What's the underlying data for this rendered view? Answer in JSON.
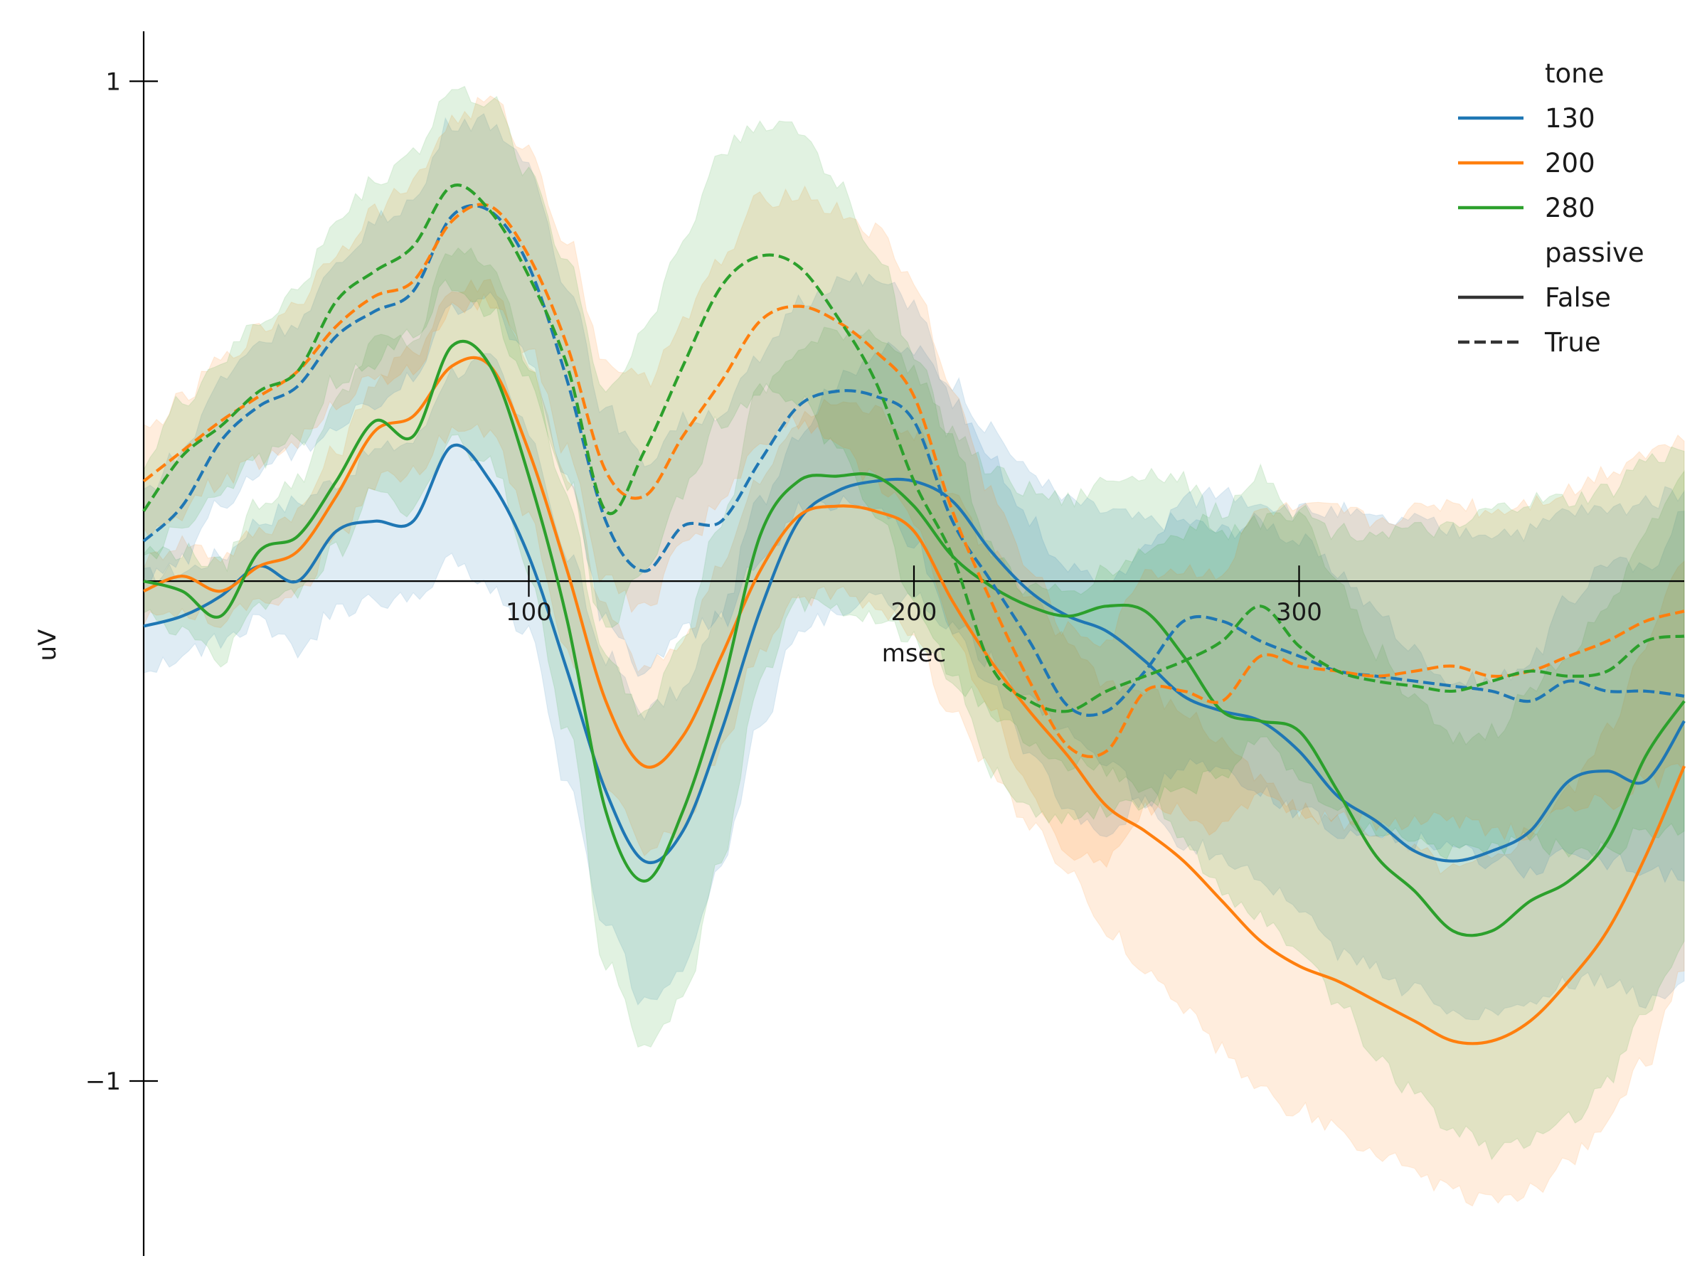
{
  "chart_data": {
    "type": "line",
    "xlabel": "msec",
    "ylabel": "uV",
    "xlim": [
      0,
      400
    ],
    "ylim": [
      -1.35,
      1.1
    ],
    "x_ticks": [
      {
        "value": 100,
        "label": "100"
      },
      {
        "value": 200,
        "label": "200"
      },
      {
        "value": 300,
        "label": "300"
      }
    ],
    "y_ticks": [
      {
        "value": 1,
        "label": "1"
      },
      {
        "value": -1,
        "label": "−1"
      }
    ],
    "grid": false,
    "legend_placement": "top-right",
    "legend": {
      "groups": [
        {
          "title": "tone",
          "entries": [
            {
              "label": "130",
              "color": "#1f77b4",
              "dash": "solid"
            },
            {
              "label": "200",
              "color": "#ff7f0e",
              "dash": "solid"
            },
            {
              "label": "280",
              "color": "#2ca02c",
              "dash": "solid"
            }
          ]
        },
        {
          "title": "passive",
          "entries": [
            {
              "label": "False",
              "color": "#333333",
              "dash": "solid"
            },
            {
              "label": "True",
              "color": "#333333",
              "dash": "dashed"
            }
          ]
        }
      ]
    },
    "x": [
      0,
      10,
      20,
      30,
      40,
      50,
      60,
      70,
      80,
      90,
      100,
      110,
      120,
      130,
      140,
      150,
      160,
      170,
      180,
      190,
      200,
      210,
      220,
      230,
      240,
      250,
      260,
      270,
      280,
      290,
      300,
      310,
      320,
      330,
      340,
      350,
      360,
      370,
      380,
      390,
      400
    ],
    "series": [
      {
        "tone": "130",
        "passive": "False",
        "color": "#1f77b4",
        "dash": "solid",
        "y": [
          -0.09,
          -0.07,
          -0.03,
          0.03,
          0.0,
          0.1,
          0.12,
          0.12,
          0.27,
          0.2,
          0.05,
          -0.18,
          -0.42,
          -0.56,
          -0.5,
          -0.3,
          -0.06,
          0.12,
          0.18,
          0.2,
          0.2,
          0.16,
          0.06,
          -0.02,
          -0.07,
          -0.1,
          -0.16,
          -0.23,
          -0.26,
          -0.28,
          -0.34,
          -0.43,
          -0.48,
          -0.54,
          -0.56,
          -0.54,
          -0.5,
          -0.4,
          -0.38,
          -0.4,
          -0.28
        ],
        "lower": [
          -0.17,
          -0.15,
          -0.12,
          -0.08,
          -0.14,
          -0.06,
          -0.04,
          -0.04,
          0.05,
          -0.02,
          -0.1,
          -0.4,
          -0.68,
          -0.84,
          -0.78,
          -0.56,
          -0.3,
          -0.1,
          -0.06,
          -0.04,
          -0.04,
          -0.08,
          -0.16,
          -0.24,
          -0.3,
          -0.36,
          -0.44,
          -0.52,
          -0.55,
          -0.6,
          -0.66,
          -0.74,
          -0.78,
          -0.82,
          -0.86,
          -0.86,
          -0.84,
          -0.8,
          -0.8,
          -0.84,
          -0.8
        ],
        "upper": [
          0.01,
          0.02,
          0.05,
          0.12,
          0.16,
          0.2,
          0.26,
          0.28,
          0.42,
          0.44,
          0.3,
          0.05,
          -0.15,
          -0.26,
          -0.22,
          -0.06,
          0.16,
          0.3,
          0.4,
          0.46,
          0.46,
          0.4,
          0.3,
          0.22,
          0.16,
          0.14,
          0.12,
          0.12,
          0.1,
          0.12,
          0.08,
          0.02,
          -0.06,
          -0.14,
          -0.2,
          -0.2,
          -0.16,
          -0.04,
          0.04,
          0.02,
          0.14
        ]
      },
      {
        "tone": "200",
        "passive": "False",
        "color": "#ff7f0e",
        "dash": "solid",
        "y": [
          -0.02,
          0.01,
          -0.02,
          0.03,
          0.06,
          0.17,
          0.3,
          0.33,
          0.43,
          0.43,
          0.26,
          0.02,
          -0.24,
          -0.37,
          -0.31,
          -0.15,
          0.02,
          0.13,
          0.15,
          0.14,
          0.1,
          -0.04,
          -0.16,
          -0.26,
          -0.35,
          -0.45,
          -0.5,
          -0.56,
          -0.64,
          -0.72,
          -0.77,
          -0.8,
          -0.84,
          -0.88,
          -0.92,
          -0.92,
          -0.88,
          -0.8,
          -0.7,
          -0.55,
          -0.37
        ],
        "lower": [
          -0.08,
          -0.06,
          -0.08,
          -0.04,
          -0.02,
          0.08,
          0.2,
          0.22,
          0.3,
          0.3,
          0.12,
          -0.14,
          -0.4,
          -0.54,
          -0.5,
          -0.34,
          -0.14,
          -0.04,
          -0.02,
          -0.04,
          -0.12,
          -0.26,
          -0.38,
          -0.48,
          -0.58,
          -0.7,
          -0.78,
          -0.86,
          -0.94,
          -1.02,
          -1.06,
          -1.1,
          -1.14,
          -1.18,
          -1.22,
          -1.24,
          -1.22,
          -1.16,
          -1.08,
          -0.96,
          -0.78
        ],
        "upper": [
          0.04,
          0.08,
          0.05,
          0.1,
          0.14,
          0.26,
          0.4,
          0.46,
          0.58,
          0.6,
          0.44,
          0.2,
          -0.06,
          -0.18,
          -0.12,
          0.04,
          0.2,
          0.32,
          0.36,
          0.34,
          0.3,
          0.18,
          0.06,
          -0.04,
          -0.12,
          -0.2,
          -0.22,
          -0.26,
          -0.32,
          -0.4,
          -0.46,
          -0.48,
          -0.5,
          -0.54,
          -0.58,
          -0.56,
          -0.5,
          -0.42,
          -0.3,
          -0.12,
          0.04
        ]
      },
      {
        "tone": "280",
        "passive": "False",
        "color": "#2ca02c",
        "dash": "solid",
        "y": [
          0.0,
          -0.02,
          -0.07,
          0.06,
          0.09,
          0.2,
          0.32,
          0.29,
          0.47,
          0.43,
          0.21,
          -0.08,
          -0.46,
          -0.6,
          -0.46,
          -0.22,
          0.09,
          0.2,
          0.21,
          0.21,
          0.15,
          0.05,
          -0.01,
          -0.05,
          -0.07,
          -0.05,
          -0.06,
          -0.15,
          -0.26,
          -0.28,
          -0.3,
          -0.42,
          -0.55,
          -0.62,
          -0.7,
          -0.7,
          -0.64,
          -0.6,
          -0.52,
          -0.35,
          -0.24
        ],
        "lower": [
          -0.06,
          -0.1,
          -0.16,
          -0.04,
          -0.02,
          0.06,
          0.18,
          0.14,
          0.28,
          0.24,
          0.02,
          -0.3,
          -0.76,
          -0.94,
          -0.84,
          -0.56,
          -0.2,
          -0.04,
          -0.06,
          -0.08,
          -0.12,
          -0.2,
          -0.26,
          -0.32,
          -0.36,
          -0.38,
          -0.42,
          -0.52,
          -0.62,
          -0.68,
          -0.74,
          -0.84,
          -0.96,
          -1.02,
          -1.1,
          -1.14,
          -1.12,
          -1.08,
          -1.0,
          -0.86,
          -0.72
        ],
        "upper": [
          0.06,
          0.06,
          0.03,
          0.16,
          0.2,
          0.36,
          0.48,
          0.48,
          0.66,
          0.64,
          0.44,
          0.16,
          -0.16,
          -0.26,
          -0.1,
          0.12,
          0.38,
          0.46,
          0.5,
          0.5,
          0.42,
          0.3,
          0.22,
          0.18,
          0.16,
          0.2,
          0.22,
          0.2,
          0.1,
          0.12,
          0.12,
          0.0,
          -0.14,
          -0.24,
          -0.32,
          -0.3,
          -0.22,
          -0.14,
          -0.06,
          0.1,
          0.22
        ]
      },
      {
        "tone": "130",
        "passive": "True",
        "color": "#1f77b4",
        "dash": "dashed",
        "y": [
          0.08,
          0.15,
          0.28,
          0.35,
          0.39,
          0.49,
          0.54,
          0.58,
          0.73,
          0.74,
          0.63,
          0.4,
          0.12,
          0.02,
          0.11,
          0.12,
          0.24,
          0.35,
          0.38,
          0.37,
          0.32,
          0.12,
          0.0,
          -0.12,
          -0.25,
          -0.26,
          -0.18,
          -0.08,
          -0.08,
          -0.12,
          -0.15,
          -0.18,
          -0.19,
          -0.2,
          -0.21,
          -0.22,
          -0.24,
          -0.2,
          -0.22,
          -0.22,
          -0.23
        ],
        "lower": [
          0.0,
          0.04,
          0.16,
          0.22,
          0.26,
          0.32,
          0.36,
          0.4,
          0.54,
          0.56,
          0.44,
          0.2,
          -0.08,
          -0.18,
          -0.1,
          -0.08,
          0.04,
          0.14,
          0.16,
          0.14,
          0.08,
          -0.1,
          -0.22,
          -0.34,
          -0.46,
          -0.5,
          -0.44,
          -0.36,
          -0.38,
          -0.42,
          -0.46,
          -0.5,
          -0.52,
          -0.52,
          -0.54,
          -0.56,
          -0.58,
          -0.54,
          -0.56,
          -0.58,
          -0.6
        ],
        "upper": [
          0.18,
          0.26,
          0.4,
          0.48,
          0.52,
          0.62,
          0.72,
          0.76,
          0.92,
          0.92,
          0.82,
          0.6,
          0.34,
          0.24,
          0.32,
          0.34,
          0.44,
          0.56,
          0.6,
          0.6,
          0.56,
          0.36,
          0.24,
          0.12,
          0.02,
          0.0,
          0.06,
          0.16,
          0.18,
          0.16,
          0.14,
          0.14,
          0.12,
          0.12,
          0.1,
          0.1,
          0.1,
          0.14,
          0.14,
          0.16,
          0.18
        ]
      },
      {
        "tone": "200",
        "passive": "True",
        "color": "#ff7f0e",
        "dash": "dashed",
        "y": [
          0.2,
          0.26,
          0.32,
          0.37,
          0.42,
          0.51,
          0.57,
          0.6,
          0.72,
          0.75,
          0.65,
          0.47,
          0.22,
          0.17,
          0.29,
          0.4,
          0.52,
          0.55,
          0.52,
          0.46,
          0.37,
          0.14,
          -0.04,
          -0.2,
          -0.33,
          -0.34,
          -0.22,
          -0.22,
          -0.24,
          -0.15,
          -0.17,
          -0.18,
          -0.19,
          -0.18,
          -0.17,
          -0.19,
          -0.18,
          -0.15,
          -0.12,
          -0.08,
          -0.06
        ],
        "lower": [
          0.1,
          0.14,
          0.2,
          0.24,
          0.28,
          0.36,
          0.4,
          0.42,
          0.54,
          0.56,
          0.46,
          0.26,
          0.0,
          -0.06,
          0.06,
          0.16,
          0.28,
          0.32,
          0.28,
          0.2,
          0.12,
          -0.1,
          -0.26,
          -0.42,
          -0.54,
          -0.56,
          -0.46,
          -0.46,
          -0.5,
          -0.42,
          -0.46,
          -0.48,
          -0.48,
          -0.48,
          -0.48,
          -0.5,
          -0.5,
          -0.46,
          -0.44,
          -0.4,
          -0.38
        ],
        "upper": [
          0.3,
          0.36,
          0.44,
          0.5,
          0.56,
          0.66,
          0.74,
          0.8,
          0.92,
          0.96,
          0.86,
          0.68,
          0.44,
          0.4,
          0.52,
          0.64,
          0.76,
          0.78,
          0.74,
          0.7,
          0.6,
          0.38,
          0.18,
          0.02,
          -0.1,
          -0.12,
          0.02,
          0.02,
          0.02,
          0.14,
          0.14,
          0.14,
          0.12,
          0.14,
          0.16,
          0.14,
          0.16,
          0.18,
          0.22,
          0.26,
          0.28
        ]
      },
      {
        "tone": "280",
        "passive": "True",
        "color": "#2ca02c",
        "dash": "dashed",
        "y": [
          0.14,
          0.25,
          0.31,
          0.38,
          0.42,
          0.56,
          0.62,
          0.67,
          0.79,
          0.74,
          0.61,
          0.43,
          0.14,
          0.26,
          0.43,
          0.59,
          0.65,
          0.63,
          0.53,
          0.4,
          0.2,
          0.05,
          -0.17,
          -0.24,
          -0.26,
          -0.22,
          -0.19,
          -0.16,
          -0.12,
          -0.05,
          -0.13,
          -0.18,
          -0.2,
          -0.21,
          -0.22,
          -0.2,
          -0.18,
          -0.19,
          -0.18,
          -0.12,
          -0.11
        ],
        "lower": [
          0.04,
          0.12,
          0.18,
          0.24,
          0.28,
          0.4,
          0.44,
          0.5,
          0.6,
          0.54,
          0.4,
          0.2,
          -0.1,
          0.02,
          0.18,
          0.32,
          0.38,
          0.36,
          0.26,
          0.14,
          -0.04,
          -0.18,
          -0.38,
          -0.46,
          -0.48,
          -0.46,
          -0.44,
          -0.42,
          -0.38,
          -0.32,
          -0.4,
          -0.46,
          -0.5,
          -0.52,
          -0.54,
          -0.54,
          -0.52,
          -0.54,
          -0.54,
          -0.5,
          -0.5
        ],
        "upper": [
          0.24,
          0.36,
          0.44,
          0.52,
          0.58,
          0.72,
          0.8,
          0.86,
          0.98,
          0.96,
          0.82,
          0.64,
          0.38,
          0.5,
          0.68,
          0.86,
          0.92,
          0.9,
          0.8,
          0.66,
          0.46,
          0.28,
          0.06,
          -0.02,
          -0.02,
          0.02,
          0.06,
          0.1,
          0.14,
          0.22,
          0.14,
          0.1,
          0.1,
          0.1,
          0.1,
          0.14,
          0.16,
          0.16,
          0.18,
          0.24,
          0.26
        ]
      }
    ]
  }
}
